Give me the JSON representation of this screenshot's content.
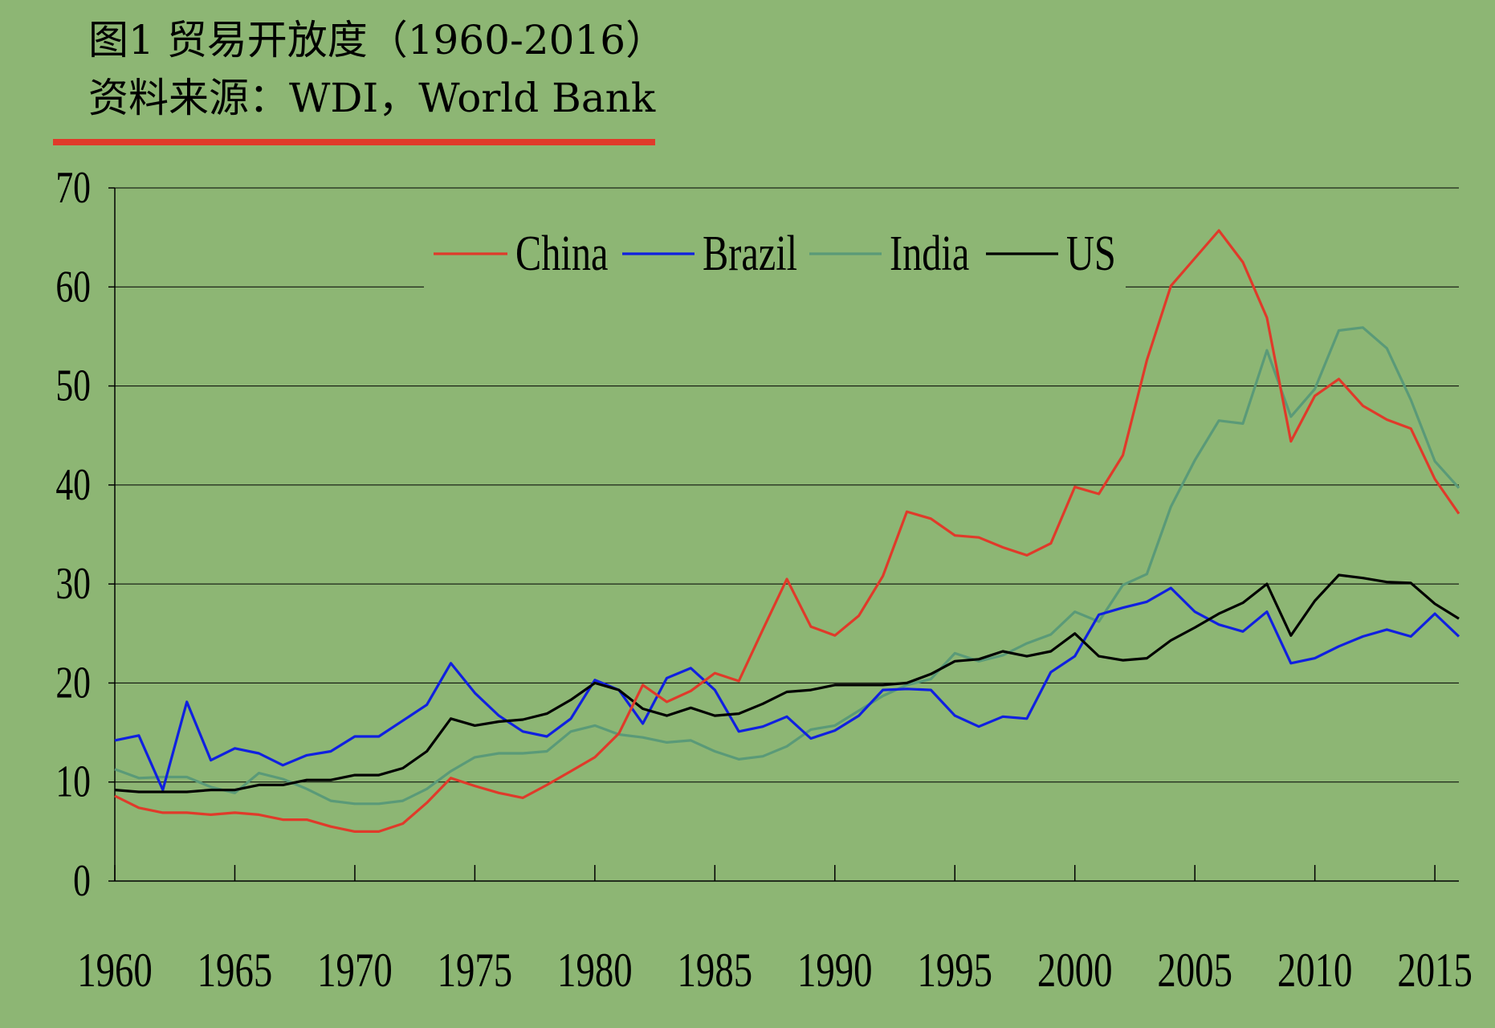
{
  "header": {
    "title": "图1 贸易开放度（1960-2016）",
    "source": "资料来源：WDI，World Bank"
  },
  "colors": {
    "background": "#8db674",
    "accent_rule": "#e03a2a",
    "grid": "#000000"
  },
  "chart_data": {
    "type": "line",
    "title": "图1 贸易开放度（1960-2016）",
    "subtitle": "资料来源：WDI，World Bank",
    "xlabel": "",
    "ylabel": "",
    "xlim": [
      1960,
      2016
    ],
    "ylim": [
      0,
      70
    ],
    "yticks": [
      0,
      10,
      20,
      30,
      40,
      50,
      60,
      70
    ],
    "xticks": [
      1960,
      1965,
      1970,
      1975,
      1980,
      1985,
      1990,
      1995,
      2000,
      2005,
      2010,
      2015
    ],
    "grid": "horizontal",
    "legend_position": "top",
    "x": [
      1960,
      1961,
      1962,
      1963,
      1964,
      1965,
      1966,
      1967,
      1968,
      1969,
      1970,
      1971,
      1972,
      1973,
      1974,
      1975,
      1976,
      1977,
      1978,
      1979,
      1980,
      1981,
      1982,
      1983,
      1984,
      1985,
      1986,
      1987,
      1988,
      1989,
      1990,
      1991,
      1992,
      1993,
      1994,
      1995,
      1996,
      1997,
      1998,
      1999,
      2000,
      2001,
      2002,
      2003,
      2004,
      2005,
      2006,
      2007,
      2008,
      2009,
      2010,
      2011,
      2012,
      2013,
      2014,
      2015,
      2016
    ],
    "series": [
      {
        "name": "China",
        "color": "#e03a2a",
        "values": [
          8.6,
          7.4,
          6.9,
          6.9,
          6.7,
          6.9,
          6.7,
          6.2,
          6.2,
          5.5,
          5.0,
          5.0,
          5.8,
          7.9,
          10.4,
          9.6,
          8.9,
          8.4,
          9.7,
          11.1,
          12.5,
          14.9,
          19.8,
          18.1,
          19.2,
          21.0,
          20.2,
          25.4,
          30.5,
          25.7,
          24.8,
          26.8,
          30.8,
          37.3,
          36.6,
          34.9,
          34.7,
          33.7,
          32.9,
          34.1,
          39.8,
          39.1,
          43.0,
          52.6,
          60.1,
          62.9,
          65.7,
          62.5,
          56.9,
          44.4,
          49.0,
          50.7,
          48.0,
          46.6,
          45.7,
          40.6,
          37.1
        ]
      },
      {
        "name": "Brazil",
        "color": "#1020e0",
        "values": [
          14.2,
          14.7,
          9.2,
          18.1,
          12.2,
          13.4,
          12.9,
          11.7,
          12.7,
          13.1,
          14.6,
          14.6,
          16.2,
          17.8,
          22.0,
          19.0,
          16.7,
          15.1,
          14.6,
          16.4,
          20.3,
          19.3,
          15.9,
          20.5,
          21.5,
          19.3,
          15.1,
          15.6,
          16.6,
          14.4,
          15.2,
          16.7,
          19.3,
          19.4,
          19.3,
          16.7,
          15.6,
          16.6,
          16.4,
          21.1,
          22.7,
          26.9,
          27.6,
          28.2,
          29.6,
          27.2,
          25.9,
          25.2,
          27.2,
          22.0,
          22.5,
          23.7,
          24.7,
          25.4,
          24.7,
          27.0,
          24.7
        ]
      },
      {
        "name": "India",
        "color": "#5a9a78",
        "values": [
          11.3,
          10.4,
          10.5,
          10.5,
          9.5,
          8.9,
          10.9,
          10.3,
          9.3,
          8.1,
          7.8,
          7.8,
          8.1,
          9.3,
          11.1,
          12.5,
          12.9,
          12.9,
          13.1,
          15.1,
          15.7,
          14.8,
          14.5,
          14.0,
          14.2,
          13.1,
          12.3,
          12.6,
          13.6,
          15.3,
          15.7,
          17.2,
          18.7,
          19.8,
          20.4,
          23.0,
          22.2,
          22.8,
          24.0,
          24.9,
          27.2,
          26.2,
          29.9,
          31.0,
          37.8,
          42.5,
          46.5,
          46.2,
          53.6,
          46.9,
          49.7,
          55.6,
          55.9,
          53.8,
          48.6,
          42.4,
          39.7
        ]
      },
      {
        "name": "US",
        "color": "#000000",
        "values": [
          9.2,
          9.0,
          9.0,
          9.0,
          9.2,
          9.2,
          9.7,
          9.7,
          10.2,
          10.2,
          10.7,
          10.7,
          11.4,
          13.1,
          16.4,
          15.7,
          16.1,
          16.3,
          16.9,
          18.3,
          20.0,
          19.3,
          17.4,
          16.7,
          17.5,
          16.7,
          16.9,
          17.9,
          19.1,
          19.3,
          19.8,
          19.8,
          19.8,
          20.0,
          20.9,
          22.2,
          22.4,
          23.2,
          22.7,
          23.2,
          25.0,
          22.7,
          22.3,
          22.5,
          24.3,
          25.6,
          27.0,
          28.1,
          30.0,
          24.8,
          28.3,
          30.9,
          30.6,
          30.2,
          30.1,
          28.0,
          26.5
        ]
      }
    ]
  }
}
